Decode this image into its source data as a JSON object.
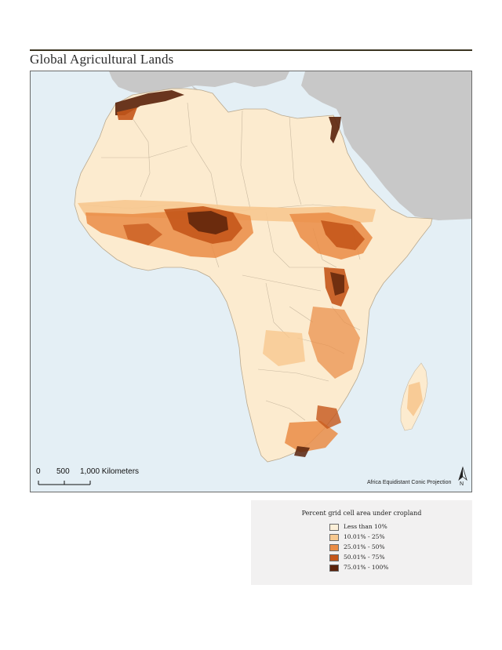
{
  "map": {
    "title": "Global Agricultural Lands",
    "projection": "Africa Equidistant Conic Projection",
    "north_label": "N",
    "scale_bar": {
      "labels": [
        "0",
        "500",
        "1,000 Kilometers"
      ]
    },
    "colors": {
      "water": "#e4eff5",
      "other_land": "#c8c8c8",
      "africa_base": "#fcebcf",
      "border": "#c9b9a0"
    }
  },
  "legend": {
    "title": "Percent grid cell area under cropland",
    "items": [
      {
        "label": "Less than 10%",
        "color": "#fcefd8"
      },
      {
        "label": "10.01% - 25%",
        "color": "#f7c88f"
      },
      {
        "label": "25.01% - 50%",
        "color": "#ea8c45"
      },
      {
        "label": "50.01% - 75%",
        "color": "#c4561a"
      },
      {
        "label": "75.01% - 100%",
        "color": "#5a220a"
      }
    ]
  }
}
